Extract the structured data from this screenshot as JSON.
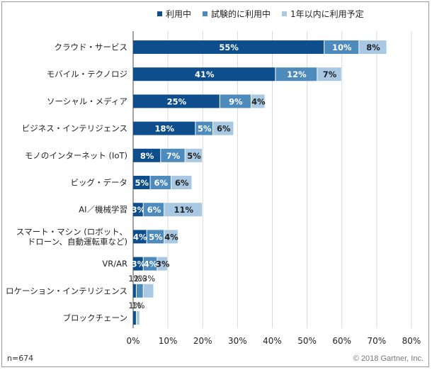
{
  "chart_data": {
    "type": "bar",
    "orientation": "horizontal",
    "stacked": true,
    "categories": [
      "クラウド・サービス",
      "モバイル・テクノロジ",
      "ソーシャル・メディア",
      "ビジネス・インテリジェンス",
      "モノのインターネット (IoT)",
      "ビッグ・データ",
      "AI／機械学習",
      "スマート・マシン (ロボット、\nドローン、自動運転車など)",
      "VR/AR",
      "ロケーション・インテリジェンス",
      "ブロックチェーン"
    ],
    "series": [
      {
        "name": "利用中",
        "color": "#0f4e8c",
        "values": [
          55,
          41,
          25,
          18,
          8,
          5,
          3,
          4,
          3,
          1,
          1
        ],
        "labels": [
          "55%",
          "41%",
          "25%",
          "18%",
          "8%",
          "5%",
          "3%",
          "4%",
          "3%",
          "1%",
          "1%"
        ]
      },
      {
        "name": "試験的に利用中",
        "color": "#4d8bbd",
        "values": [
          10,
          12,
          9,
          5,
          7,
          6,
          6,
          5,
          4,
          2,
          0
        ],
        "labels": [
          "10%",
          "12%",
          "9%",
          "5%",
          "7%",
          "6%",
          "6%",
          "5%",
          "4%",
          "2%",
          ""
        ]
      },
      {
        "name": "1年以内に利用予定",
        "color": "#a9c8e3",
        "values": [
          8,
          7,
          4,
          6,
          5,
          6,
          11,
          4,
          3,
          3,
          1
        ],
        "labels": [
          "8%",
          "7%",
          "4%",
          "6%",
          "5%",
          "6%",
          "11%",
          "4%",
          "3%",
          "3%",
          "1%"
        ]
      }
    ],
    "xlim": [
      0,
      80
    ],
    "xticks": [
      "0%",
      "10%",
      "20%",
      "30%",
      "40%",
      "50%",
      "60%",
      "70%",
      "80%"
    ],
    "grid": "vertical",
    "legend_position": "top"
  },
  "footer": {
    "sample": "n=674",
    "copyright": "© 2018 Gartner, Inc."
  }
}
